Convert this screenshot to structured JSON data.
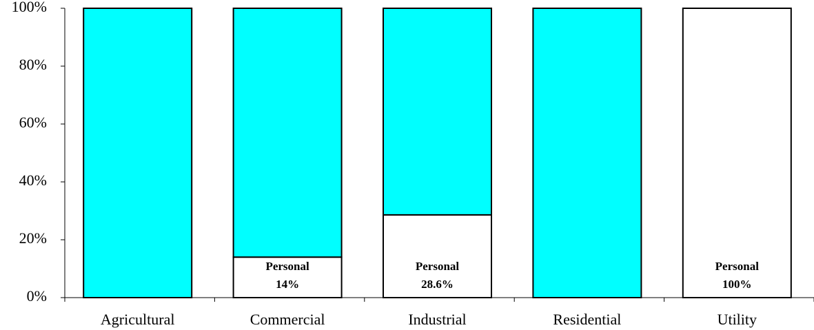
{
  "chart_data": {
    "type": "stacked_bar",
    "categories": [
      "Agricultural",
      "Commercial",
      "Industrial",
      "Residential",
      "Utility"
    ],
    "series": [
      {
        "name": "Personal",
        "color": "#ffffff",
        "values": [
          0,
          14,
          28.6,
          0,
          100
        ],
        "value_labels": [
          null,
          "14%",
          "28.6%",
          null,
          "100%"
        ]
      },
      {
        "color": "#00ffff",
        "values": [
          100,
          86,
          71.4,
          100,
          0
        ]
      }
    ],
    "ylim": [
      0,
      100
    ],
    "yticks": [
      {
        "value": 0,
        "label": "0%"
      },
      {
        "value": 20,
        "label": "20%"
      },
      {
        "value": 40,
        "label": "40%"
      },
      {
        "value": 60,
        "label": "60%"
      },
      {
        "value": 80,
        "label": "80%"
      },
      {
        "value": 100,
        "label": "100%"
      }
    ]
  }
}
